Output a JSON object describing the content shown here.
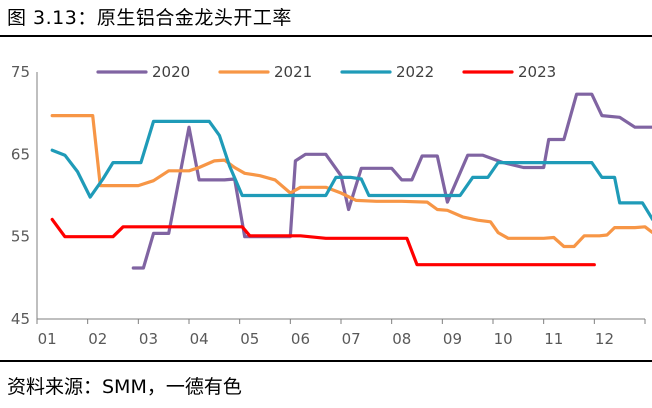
{
  "title": "图 3.13：原生铝合金龙头开工率",
  "source": "资料来源：SMM，一德有色",
  "chart_data": {
    "type": "line",
    "title": "原生铝合金龙头开工率",
    "xlabel": "",
    "ylabel": "",
    "xlim": [
      0.8,
      12.8
    ],
    "ylim": [
      45,
      75
    ],
    "yticks": [
      45,
      55,
      65,
      75
    ],
    "xtick_labels": [
      "01",
      "02",
      "03",
      "04",
      "05",
      "06",
      "07",
      "08",
      "09",
      "10",
      "11",
      "12"
    ],
    "grid": false,
    "legend_position": "top",
    "series": [
      {
        "name": "2020",
        "color": "#8064A2",
        "points": [
          [
            2.7,
            51.2
          ],
          [
            2.9,
            51.2
          ],
          [
            3.1,
            55.4
          ],
          [
            3.4,
            55.4
          ],
          [
            3.8,
            68.3
          ],
          [
            4.0,
            61.9
          ],
          [
            4.5,
            61.9
          ],
          [
            4.7,
            62.0
          ],
          [
            4.9,
            55.0
          ],
          [
            5.3,
            55.0
          ],
          [
            5.5,
            55.0
          ],
          [
            5.8,
            55.0
          ],
          [
            5.9,
            64.2
          ],
          [
            6.1,
            65.0
          ],
          [
            6.5,
            65.0
          ],
          [
            6.8,
            62.4
          ],
          [
            6.95,
            58.3
          ],
          [
            7.2,
            63.3
          ],
          [
            7.8,
            63.3
          ],
          [
            8.0,
            61.9
          ],
          [
            8.2,
            61.9
          ],
          [
            8.4,
            64.8
          ],
          [
            8.7,
            64.8
          ],
          [
            8.9,
            59.2
          ],
          [
            9.3,
            64.9
          ],
          [
            9.6,
            64.9
          ],
          [
            10.0,
            64.0
          ],
          [
            10.4,
            63.4
          ],
          [
            10.8,
            63.4
          ],
          [
            10.9,
            66.8
          ],
          [
            11.2,
            66.8
          ],
          [
            11.45,
            72.3
          ],
          [
            11.75,
            72.3
          ],
          [
            11.95,
            69.7
          ],
          [
            12.3,
            69.5
          ],
          [
            12.6,
            68.3
          ],
          [
            12.95,
            68.3
          ]
        ]
      },
      {
        "name": "2021",
        "color": "#F79646",
        "points": [
          [
            1.1,
            69.7
          ],
          [
            1.9,
            69.7
          ],
          [
            2.05,
            61.2
          ],
          [
            2.3,
            61.2
          ],
          [
            2.8,
            61.2
          ],
          [
            3.1,
            61.8
          ],
          [
            3.4,
            63.0
          ],
          [
            3.8,
            63.0
          ],
          [
            4.0,
            63.4
          ],
          [
            4.3,
            64.2
          ],
          [
            4.5,
            64.3
          ],
          [
            4.7,
            63.4
          ],
          [
            4.9,
            62.7
          ],
          [
            5.2,
            62.4
          ],
          [
            5.5,
            61.9
          ],
          [
            5.8,
            60.3
          ],
          [
            6.0,
            61.0
          ],
          [
            6.5,
            61.0
          ],
          [
            6.8,
            60.3
          ],
          [
            7.1,
            59.4
          ],
          [
            7.5,
            59.3
          ],
          [
            8.0,
            59.3
          ],
          [
            8.5,
            59.2
          ],
          [
            8.7,
            58.3
          ],
          [
            8.9,
            58.2
          ],
          [
            9.2,
            57.4
          ],
          [
            9.5,
            57.0
          ],
          [
            9.75,
            56.8
          ],
          [
            9.9,
            55.5
          ],
          [
            10.1,
            54.8
          ],
          [
            10.4,
            54.8
          ],
          [
            10.8,
            54.8
          ],
          [
            11.0,
            54.9
          ],
          [
            11.2,
            53.8
          ],
          [
            11.4,
            53.8
          ],
          [
            11.6,
            55.1
          ],
          [
            11.9,
            55.1
          ],
          [
            12.05,
            55.2
          ],
          [
            12.2,
            56.1
          ],
          [
            12.6,
            56.1
          ],
          [
            12.8,
            56.2
          ],
          [
            12.95,
            55.5
          ]
        ]
      },
      {
        "name": "2022",
        "color": "#1F9BB8",
        "points": [
          [
            1.1,
            65.5
          ],
          [
            1.35,
            64.9
          ],
          [
            1.6,
            62.9
          ],
          [
            1.85,
            59.8
          ],
          [
            2.1,
            62.0
          ],
          [
            2.3,
            64.0
          ],
          [
            2.6,
            64.0
          ],
          [
            2.85,
            64.0
          ],
          [
            3.1,
            69.0
          ],
          [
            3.4,
            69.0
          ],
          [
            3.8,
            69.0
          ],
          [
            4.0,
            69.0
          ],
          [
            4.2,
            69.0
          ],
          [
            4.4,
            67.3
          ],
          [
            4.6,
            63.6
          ],
          [
            4.85,
            60.0
          ],
          [
            5.2,
            60.0
          ],
          [
            5.6,
            60.0
          ],
          [
            6.0,
            60.0
          ],
          [
            6.2,
            60.0
          ],
          [
            6.5,
            60.0
          ],
          [
            6.7,
            62.2
          ],
          [
            7.0,
            62.2
          ],
          [
            7.2,
            62.0
          ],
          [
            7.35,
            60.0
          ],
          [
            7.6,
            60.0
          ],
          [
            8.0,
            60.0
          ],
          [
            8.5,
            60.0
          ],
          [
            9.0,
            60.0
          ],
          [
            9.15,
            60.0
          ],
          [
            9.4,
            62.2
          ],
          [
            9.7,
            62.2
          ],
          [
            9.9,
            64.0
          ],
          [
            10.3,
            64.0
          ],
          [
            11.0,
            64.0
          ],
          [
            11.6,
            64.0
          ],
          [
            11.75,
            64.0
          ],
          [
            11.95,
            62.2
          ],
          [
            12.2,
            62.2
          ],
          [
            12.3,
            59.1
          ],
          [
            12.6,
            59.1
          ],
          [
            12.75,
            59.1
          ],
          [
            12.95,
            57.1
          ]
        ]
      },
      {
        "name": "2023",
        "color": "#FF0000",
        "points": [
          [
            1.1,
            57.1
          ],
          [
            1.35,
            55.0
          ],
          [
            1.6,
            55.0
          ],
          [
            1.9,
            55.0
          ],
          [
            2.3,
            55.0
          ],
          [
            2.5,
            56.2
          ],
          [
            2.85,
            56.2
          ],
          [
            3.5,
            56.2
          ],
          [
            4.0,
            56.2
          ],
          [
            4.5,
            56.2
          ],
          [
            4.85,
            56.2
          ],
          [
            5.0,
            55.1
          ],
          [
            5.5,
            55.1
          ],
          [
            6.0,
            55.1
          ],
          [
            6.5,
            54.8
          ],
          [
            7.0,
            54.8
          ],
          [
            7.5,
            54.8
          ],
          [
            7.8,
            54.8
          ],
          [
            8.1,
            54.8
          ],
          [
            8.3,
            51.6
          ],
          [
            8.9,
            51.6
          ],
          [
            9.5,
            51.6
          ],
          [
            10.0,
            51.6
          ],
          [
            10.5,
            51.6
          ],
          [
            11.0,
            51.6
          ],
          [
            11.5,
            51.6
          ],
          [
            11.8,
            51.6
          ]
        ]
      }
    ]
  }
}
